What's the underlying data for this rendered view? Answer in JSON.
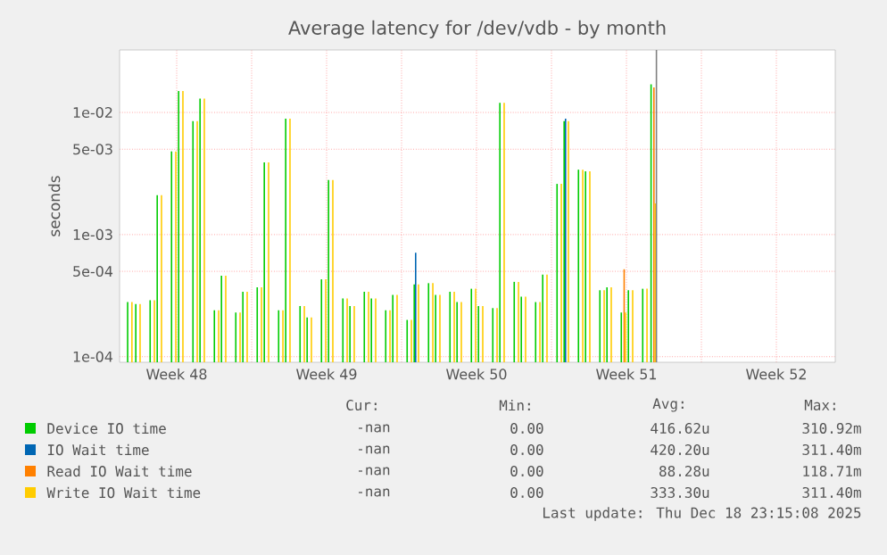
{
  "chart_data": {
    "type": "bar",
    "title": "Average latency for /dev/vdb - by month",
    "ylabel": "seconds",
    "x": [
      "2025-11-25T07:26",
      "2025-11-25T16:34",
      "2025-11-26T08:38",
      "2025-11-26T16:34",
      "2025-11-27T08:38",
      "2025-11-27T16:34",
      "2025-11-28T08:38",
      "2025-11-28T16:34",
      "2025-11-29T08:38",
      "2025-11-29T16:34",
      "2025-11-30T08:38",
      "2025-11-30T16:34",
      "2025-12-01T08:38",
      "2025-12-01T16:34",
      "2025-12-02T08:38",
      "2025-12-02T16:34",
      "2025-12-03T08:38",
      "2025-12-03T16:34",
      "2025-12-04T08:38",
      "2025-12-04T16:34",
      "2025-12-05T08:38",
      "2025-12-05T16:34",
      "2025-12-06T08:38",
      "2025-12-06T16:34",
      "2025-12-07T08:38",
      "2025-12-07T16:34",
      "2025-12-08T08:38",
      "2025-12-08T16:34",
      "2025-12-09T08:38",
      "2025-12-09T16:34",
      "2025-12-10T08:38",
      "2025-12-10T16:34",
      "2025-12-11T08:38",
      "2025-12-11T16:34",
      "2025-12-12T08:38",
      "2025-12-12T16:34",
      "2025-12-13T08:38",
      "2025-12-13T16:34",
      "2025-12-14T08:38",
      "2025-12-14T16:34",
      "2025-12-15T08:38",
      "2025-12-15T16:34",
      "2025-12-16T08:38",
      "2025-12-16T16:34",
      "2025-12-17T08:38",
      "2025-12-17T16:34",
      "2025-12-18T08:38",
      "2025-12-18T16:34",
      "2025-12-19T08:38",
      "2025-12-19T18:00"
    ],
    "series": [
      {
        "name": "Device IO time",
        "color": "#00cc00",
        "values": [
          0.00028,
          0.00027,
          0.00029,
          0.0021,
          0.0048,
          0.015,
          0.0085,
          0.013,
          0.00024,
          0.00046,
          0.00023,
          0.00034,
          0.00037,
          0.0039,
          0.00024,
          0.0089,
          0.00026,
          0.00021,
          0.00043,
          0.0028,
          0.0003,
          0.00026,
          0.00034,
          0.0003,
          0.00024,
          0.00032,
          0.0002,
          0.00039,
          0.0004,
          0.00032,
          0.00034,
          0.00028,
          0.00036,
          0.00026,
          0.00025,
          0.012,
          0.00041,
          0.00031,
          0.00028,
          0.00047,
          0.0026,
          0.0085,
          0.0034,
          0.0033,
          0.00035,
          0.00037,
          0.00023,
          0.00035,
          0.00036,
          0.017
        ]
      },
      {
        "name": "IO Wait time",
        "color": "#0066b3",
        "values": [
          null,
          null,
          null,
          null,
          null,
          null,
          null,
          null,
          null,
          null,
          null,
          null,
          null,
          null,
          null,
          null,
          null,
          null,
          null,
          null,
          null,
          null,
          null,
          null,
          null,
          null,
          null,
          0.00071,
          null,
          null,
          null,
          null,
          null,
          null,
          null,
          null,
          null,
          null,
          null,
          null,
          null,
          0.0089,
          null,
          null,
          null,
          null,
          null,
          null,
          null,
          null
        ]
      },
      {
        "name": "Read IO Wait time",
        "color": "#ff8000",
        "values": [
          null,
          null,
          null,
          null,
          null,
          null,
          null,
          null,
          null,
          null,
          null,
          null,
          null,
          null,
          null,
          null,
          null,
          null,
          null,
          null,
          null,
          null,
          null,
          null,
          null,
          null,
          null,
          null,
          null,
          null,
          null,
          null,
          null,
          null,
          null,
          null,
          null,
          null,
          null,
          null,
          null,
          null,
          null,
          null,
          null,
          null,
          0.00052,
          null,
          null,
          0.016
        ]
      },
      {
        "name": "Write IO Wait time",
        "color": "#ffcc00",
        "values": [
          0.00028,
          0.00027,
          0.00029,
          0.0021,
          0.0048,
          0.015,
          0.0085,
          0.013,
          0.00024,
          0.00046,
          0.00023,
          0.00034,
          0.00037,
          0.0039,
          0.00024,
          0.0089,
          0.00026,
          0.00021,
          0.00043,
          0.0028,
          0.0003,
          0.00026,
          0.00034,
          0.0003,
          0.00024,
          0.00032,
          0.0002,
          0.00039,
          0.0004,
          0.00032,
          0.00034,
          0.00028,
          0.00036,
          0.00026,
          0.00025,
          0.012,
          0.00041,
          0.00031,
          0.00028,
          0.00047,
          0.0026,
          0.0085,
          0.0034,
          0.0033,
          0.00035,
          0.00037,
          0.00023,
          0.00035,
          0.00036,
          0.0018
        ]
      }
    ],
    "xlim": [
      "2025-11-24T20:00",
      "2025-12-28T06:00"
    ],
    "xticks": [
      {
        "value": "2025-11-27T12:00",
        "label": "Week 48"
      },
      {
        "value": "2025-12-01",
        "label": null
      },
      {
        "value": "2025-12-04T12:00",
        "label": "Week 49"
      },
      {
        "value": "2025-12-08",
        "label": null
      },
      {
        "value": "2025-12-11T12:00",
        "label": "Week 50"
      },
      {
        "value": "2025-12-15",
        "label": null
      },
      {
        "value": "2025-12-18T12:00",
        "label": "Week 51"
      },
      {
        "value": "2025-12-22",
        "label": null
      },
      {
        "value": "2025-12-25T12:00",
        "label": "Week 52"
      }
    ],
    "ylim": [
      9e-05,
      0.0325
    ],
    "yticks": [
      {
        "value": 0.0001,
        "label": "1e-04"
      },
      {
        "value": 0.0005,
        "label": "5e-04"
      },
      {
        "value": 0.001,
        "label": "1e-03"
      },
      {
        "value": 0.005,
        "label": "5e-03"
      },
      {
        "value": 0.01,
        "label": "1e-02"
      }
    ],
    "log": "y",
    "grid": true,
    "legend": "bottom",
    "ref_lines": [
      {
        "axis": "x",
        "value": "2025-12-19T21:36",
        "color": "#808080"
      }
    ],
    "annotations": [
      "Cur:",
      "Min:",
      "Avg:",
      "Max:",
      "-nan",
      "0.00",
      "416.62u",
      "310.92m",
      "-nan",
      "0.00",
      "420.20u",
      "311.40m",
      "-nan",
      "0.00",
      "88.28u",
      "118.71m",
      "-nan",
      "0.00",
      "333.30u",
      "311.40m",
      "Last update: Thu Dec 18 23:15:08 2025"
    ]
  }
}
